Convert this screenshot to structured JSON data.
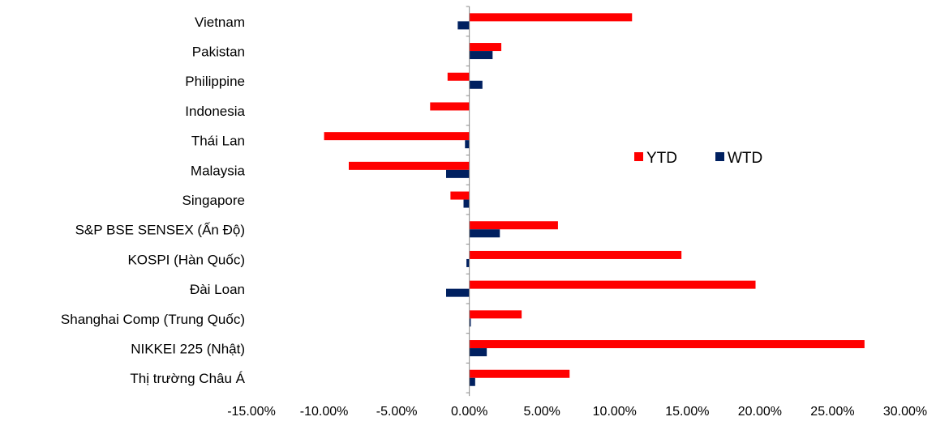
{
  "chart_data": {
    "type": "bar",
    "orientation": "horizontal",
    "categories": [
      "Vietnam",
      "Pakistan",
      "Philippine",
      "Indonesia",
      "Thái Lan",
      "Malaysia",
      "Singapore",
      "S&P BSE SENSEX (Ấn Độ)",
      "KOSPI (Hàn Quốc)",
      "Đài Loan",
      "Shanghai Comp (Trung Quốc)",
      "NIKKEI 225 (Nhật)",
      "Thị trường Châu Á"
    ],
    "series": [
      {
        "name": "YTD",
        "color": "#ff0000",
        "values": [
          11.2,
          2.2,
          -1.5,
          -2.7,
          -10.0,
          -8.3,
          -1.3,
          6.1,
          14.6,
          19.7,
          3.6,
          27.2,
          6.9
        ]
      },
      {
        "name": "WTD",
        "color": "#002060",
        "values": [
          -0.8,
          1.6,
          0.9,
          0.0,
          -0.3,
          -1.6,
          -0.4,
          2.1,
          -0.2,
          -1.6,
          0.1,
          1.2,
          0.4
        ]
      }
    ],
    "xlim": [
      -15,
      30
    ],
    "x_ticks": [
      "-15.00%",
      "-10.00%",
      "-5.00%",
      "0.00%",
      "5.00%",
      "10.00%",
      "15.00%",
      "20.00%",
      "25.00%",
      "30.00%"
    ],
    "x_tick_values": [
      -15,
      -10,
      -5,
      0,
      5,
      10,
      15,
      20,
      25,
      30
    ],
    "title": "",
    "xlabel": "",
    "ylabel": "",
    "grid": false,
    "legend_position": "right-inside"
  }
}
